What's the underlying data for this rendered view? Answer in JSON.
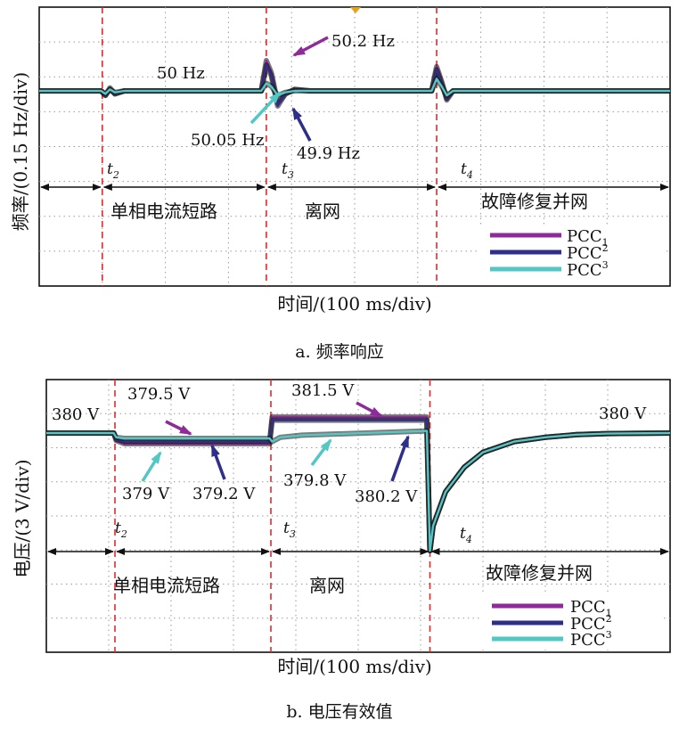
{
  "figure": {
    "caption_a": "a. 频率响应",
    "caption_b": "b. 电压有效值"
  },
  "colors": {
    "pcc": "#8e2a9a",
    "pcc1": "#2e2f88",
    "pcc2": "#52c7c3",
    "event_line": "#e02a2a"
  },
  "chart_data": [
    {
      "id": "freq",
      "type": "line",
      "ylabel": "频率/(0.15 Hz/div)",
      "xlabel": "时间/(100 ms/div)",
      "divisions": {
        "x": 10,
        "y": 8
      },
      "events": [
        {
          "t": 1.0,
          "label": "t",
          "sub": "2"
        },
        {
          "t": 3.6,
          "label": "t",
          "sub": "3"
        },
        {
          "t": 6.3,
          "label": "t",
          "sub": "4"
        }
      ],
      "intervals": [
        "单相电流短路",
        "离网",
        "故障修复并网"
      ],
      "annotations": [
        "50 Hz",
        "50.2 Hz",
        "50.05 Hz",
        "49.9 Hz"
      ],
      "legend": [
        {
          "name": "PCC",
          "sub": "1"
        },
        {
          "name": "PCC",
          "sub": "2"
        },
        {
          "name": "PCC",
          "sub": "3"
        }
      ],
      "y_unit": "Hz",
      "baseline": 50,
      "series": [
        {
          "name": "PCC1",
          "x": [
            0,
            0.98,
            1.05,
            1.12,
            1.2,
            1.35,
            3.52,
            3.6,
            3.68,
            3.78,
            3.9,
            4.05,
            4.3,
            6.22,
            6.3,
            6.38,
            6.46,
            6.56,
            6.75,
            10
          ],
          "y": [
            50,
            50,
            49.97,
            50.02,
            49.98,
            50,
            50,
            50.2,
            50.12,
            49.92,
            49.98,
            50.01,
            50,
            50,
            50.16,
            50.06,
            49.94,
            50,
            50,
            50
          ]
        },
        {
          "name": "PCC2",
          "x": [
            0,
            0.98,
            1.05,
            1.12,
            1.2,
            1.35,
            3.52,
            3.6,
            3.68,
            3.78,
            3.9,
            4.05,
            4.3,
            6.22,
            6.3,
            6.38,
            6.46,
            6.56,
            6.75,
            10
          ],
          "y": [
            50,
            50,
            49.97,
            50.01,
            49.98,
            50,
            50,
            50.17,
            50.1,
            49.9,
            49.98,
            50.01,
            50,
            50,
            50.14,
            50.05,
            49.95,
            50,
            50,
            50
          ]
        },
        {
          "name": "PCC3",
          "x": [
            0,
            0.98,
            1.05,
            1.12,
            1.2,
            1.35,
            3.52,
            3.6,
            3.68,
            3.78,
            3.9,
            4.05,
            4.3,
            6.22,
            6.3,
            6.38,
            6.46,
            6.56,
            6.75,
            10
          ],
          "y": [
            50,
            50,
            49.98,
            50.01,
            49.99,
            50,
            50,
            50.05,
            50.03,
            49.97,
            49.99,
            50,
            50,
            50,
            50.08,
            50.03,
            49.97,
            50,
            50,
            50
          ]
        }
      ]
    },
    {
      "id": "volt",
      "type": "line",
      "ylabel": "电压/(3 V/div)",
      "xlabel": "时间/(100 ms/div)",
      "divisions": {
        "x": 10,
        "y": 8
      },
      "events": [
        {
          "t": 1.1,
          "label": "t",
          "sub": "2"
        },
        {
          "t": 3.6,
          "label": "t",
          "sub": "3"
        },
        {
          "t": 6.15,
          "label": "t",
          "sub": "4"
        }
      ],
      "intervals": [
        "单相电流短路",
        "离网",
        "故障修复并网"
      ],
      "annotations": [
        "380 V",
        "379.5 V",
        "381.5 V",
        "379 V",
        "379.2 V",
        "379.8 V",
        "380.2 V",
        "380 V"
      ],
      "legend": [
        {
          "name": "PCC",
          "sub": "1"
        },
        {
          "name": "PCC",
          "sub": "2"
        },
        {
          "name": "PCC",
          "sub": "3"
        }
      ],
      "y_unit": "V",
      "baseline": 380,
      "series": [
        {
          "name": "PCC1",
          "x": [
            0,
            1.08,
            1.12,
            1.25,
            3.58,
            3.62,
            3.75,
            6.1,
            6.15,
            6.2,
            6.4,
            6.7,
            7.0,
            7.5,
            8.0,
            8.5,
            9.0,
            10
          ],
          "y": [
            380,
            380,
            379.3,
            379,
            379,
            381.5,
            381.5,
            381.5,
            369,
            371.3,
            374.5,
            376.8,
            378.2,
            379.2,
            379.6,
            379.85,
            379.95,
            380
          ]
        },
        {
          "name": "PCC2",
          "x": [
            0,
            1.08,
            1.12,
            1.25,
            3.58,
            3.62,
            3.75,
            6.1,
            6.15,
            6.2,
            6.4,
            6.7,
            7.0,
            7.5,
            8.0,
            8.5,
            9.0,
            10
          ],
          "y": [
            380,
            380,
            379.4,
            379.2,
            379.2,
            381.2,
            381.2,
            381.2,
            369,
            371.3,
            374.5,
            376.8,
            378.2,
            379.2,
            379.6,
            379.85,
            379.95,
            380
          ]
        },
        {
          "name": "PCC3",
          "x": [
            0,
            1.08,
            1.12,
            1.25,
            3.58,
            3.62,
            3.75,
            4.1,
            6.1,
            6.15,
            6.2,
            6.4,
            6.7,
            7.0,
            7.5,
            8.0,
            8.5,
            9.0,
            10
          ],
          "y": [
            380,
            380,
            379.6,
            379.5,
            379.5,
            379.2,
            379.6,
            379.8,
            380.2,
            369,
            371.3,
            374.5,
            376.8,
            378.2,
            379.2,
            379.6,
            379.85,
            379.95,
            380
          ]
        }
      ]
    }
  ]
}
